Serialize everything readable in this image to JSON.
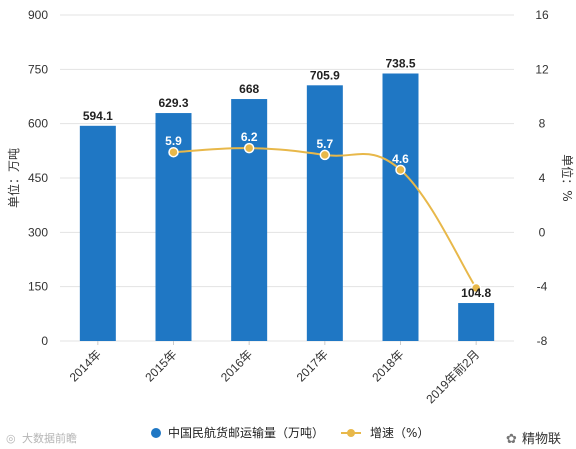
{
  "chart_data": {
    "type": "bar",
    "categories": [
      "2014年",
      "2015年",
      "2016年",
      "2017年",
      "2018年",
      "2019年前2月"
    ],
    "series": [
      {
        "name": "中国民航货邮运输量（万吨）",
        "type": "bar",
        "axis": "left",
        "color": "#1f77c4",
        "values": [
          594.1,
          629.3,
          668,
          705.9,
          738.5,
          104.8
        ],
        "labels": [
          "594.1",
          "629.3",
          "668",
          "705.9",
          "738.5",
          "104.8"
        ]
      },
      {
        "name": "增速（%）",
        "type": "line",
        "axis": "right",
        "color": "#e8b84a",
        "values": [
          null,
          5.9,
          6.2,
          5.7,
          4.6,
          -4.1
        ],
        "labels": [
          null,
          "5.9",
          "6.2",
          "5.7",
          "4.6",
          null
        ]
      }
    ],
    "ylabel": "单位：万吨",
    "ylabel_right": "单位：%",
    "ylim": [
      0,
      900
    ],
    "yticks": [
      "0",
      "150",
      "300",
      "450",
      "600",
      "750",
      "900"
    ],
    "ylim_right": [
      -8,
      16
    ],
    "yticks_right": [
      "-8",
      "-4",
      "0",
      "4",
      "8",
      "12",
      "16"
    ],
    "grid": true,
    "legend_position": "bottom"
  },
  "footer": {
    "left_watermark": "大数据前瞻",
    "right_watermark": "精物联"
  },
  "colors": {
    "bar": "#1f77c4",
    "line": "#e8b84a",
    "grid": "#e3e3e3"
  }
}
